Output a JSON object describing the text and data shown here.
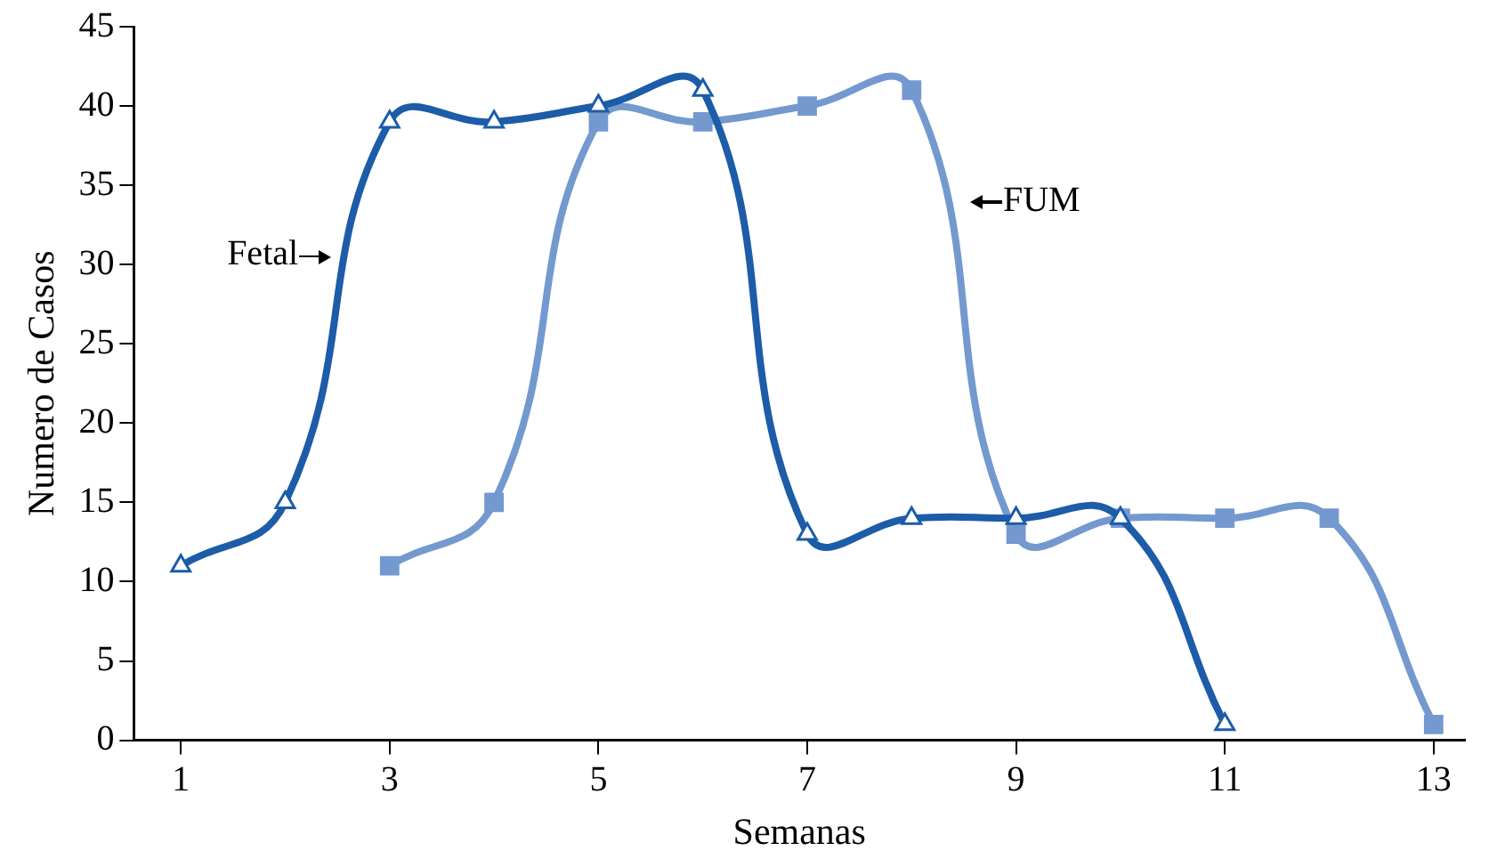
{
  "chart_data": {
    "type": "line",
    "xlabel": "Semanas",
    "ylabel": "Numero de Casos",
    "xlim": [
      0.55,
      13.3
    ],
    "xticks": [
      1,
      3,
      5,
      7,
      9,
      11,
      13
    ],
    "ylim": [
      0,
      45
    ],
    "yticks": [
      0,
      5,
      10,
      15,
      20,
      25,
      30,
      35,
      40,
      45
    ],
    "grid": false,
    "legend": false,
    "series": [
      {
        "name": "Fetal",
        "color": "#1c5ca8",
        "marker": "triangle",
        "x": [
          1,
          2,
          3,
          4,
          5,
          6,
          7,
          8,
          9,
          10,
          11
        ],
        "values": [
          11,
          15,
          39,
          39,
          40,
          41,
          13,
          14,
          14,
          14,
          1
        ]
      },
      {
        "name": "FUM",
        "color": "#7399cf",
        "marker": "square",
        "x": [
          3,
          4,
          5,
          6,
          7,
          8,
          9,
          10,
          11,
          12,
          13
        ],
        "values": [
          11,
          15,
          39,
          39,
          40,
          41,
          13,
          14,
          14,
          14,
          1
        ]
      }
    ]
  }
}
